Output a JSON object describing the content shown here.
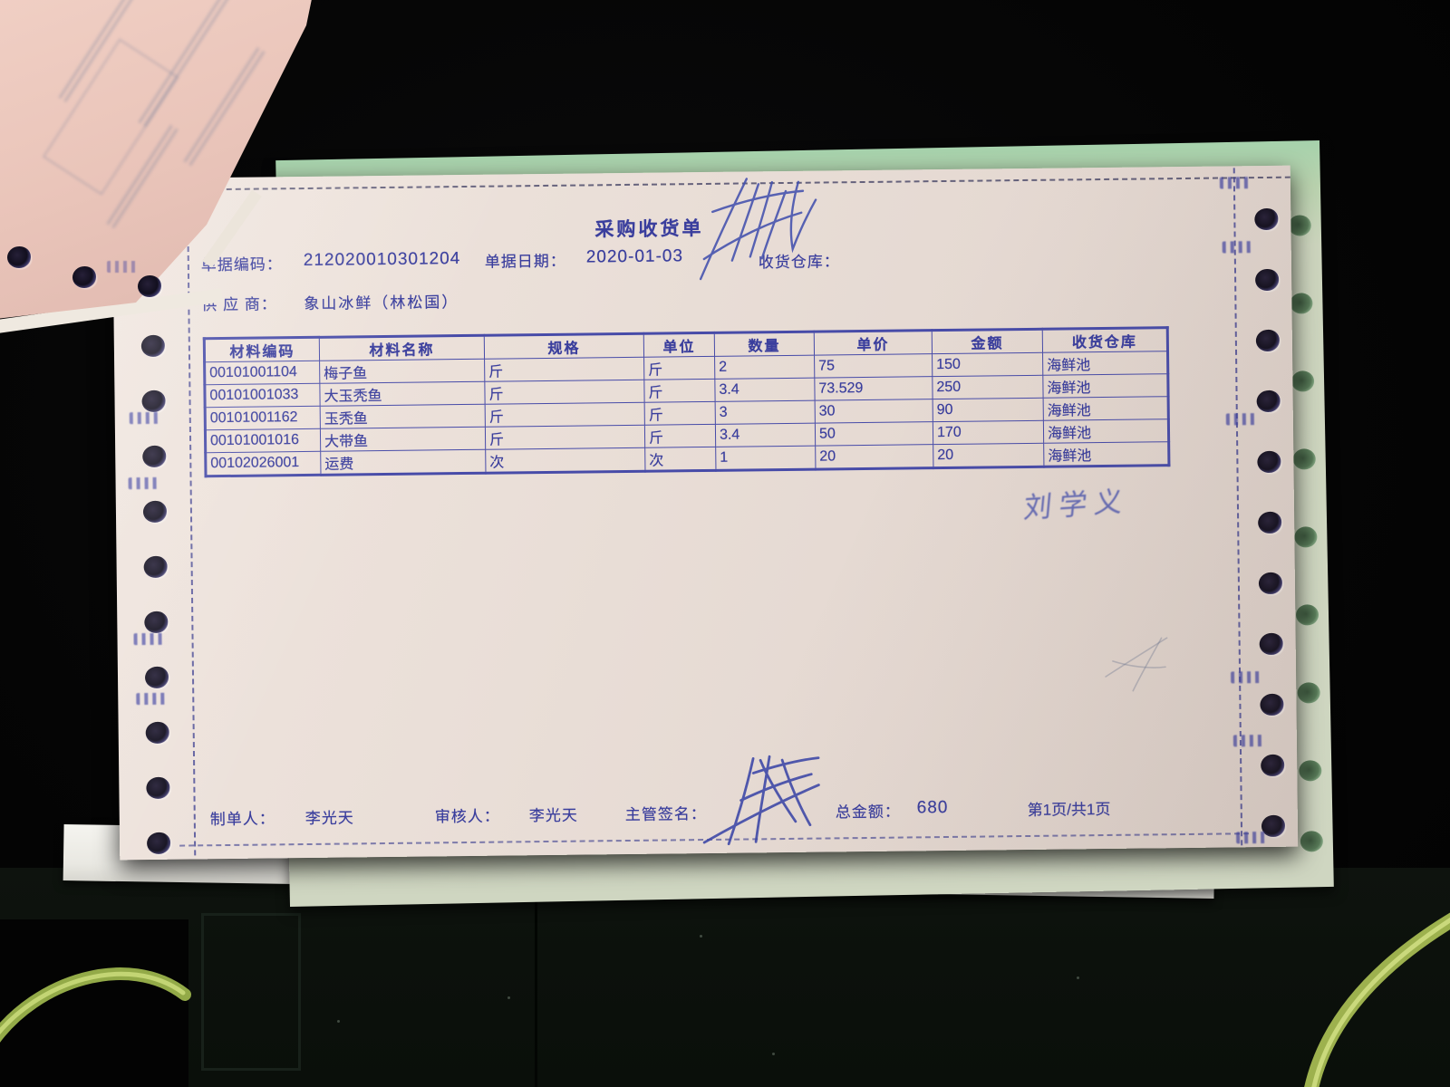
{
  "document": {
    "title": "采购收货单",
    "doc_code_label": "单据编码：",
    "doc_code": "212020010301204",
    "doc_date_label": "单据日期：",
    "doc_date": "2020-01-03",
    "warehouse_label": "收货仓库：",
    "warehouse_value": "",
    "supplier_label": "供 应 商：",
    "supplier_value": "象山冰鲜（林松国）"
  },
  "table": {
    "headers": [
      "材料编码",
      "材料名称",
      "规格",
      "单位",
      "数量",
      "单价",
      "金额",
      "收货仓库"
    ],
    "rows": [
      [
        "00101001104",
        "梅子鱼",
        "斤",
        "斤",
        "2",
        "75",
        "150",
        "海鲜池"
      ],
      [
        "00101001033",
        "大玉秃鱼",
        "斤",
        "斤",
        "3.4",
        "73.529",
        "250",
        "海鲜池"
      ],
      [
        "00101001162",
        "玉秃鱼",
        "斤",
        "斤",
        "3",
        "30",
        "90",
        "海鲜池"
      ],
      [
        "00101001016",
        "大带鱼",
        "斤",
        "斤",
        "3.4",
        "50",
        "170",
        "海鲜池"
      ],
      [
        "00102026001",
        "运费",
        "次",
        "次",
        "1",
        "20",
        "20",
        "海鲜池"
      ]
    ]
  },
  "footer": {
    "preparer_label": "制单人：",
    "preparer": "李光天",
    "reviewer_label": "审核人：",
    "reviewer": "李光天",
    "supervisor_sign_label": "主管签名：",
    "total_label": "总金额：",
    "total": "680",
    "page_info": "第1页/共1页"
  },
  "handwriting": {
    "note_right": "刘学义"
  },
  "colors": {
    "ink_blue": "#3a3e9d",
    "paper_main": "#eadfd8",
    "paper_pink": "#eac5ba",
    "paper_green": "#b9d2ae",
    "cable_green": "#b4c75e",
    "background": "#050505"
  }
}
